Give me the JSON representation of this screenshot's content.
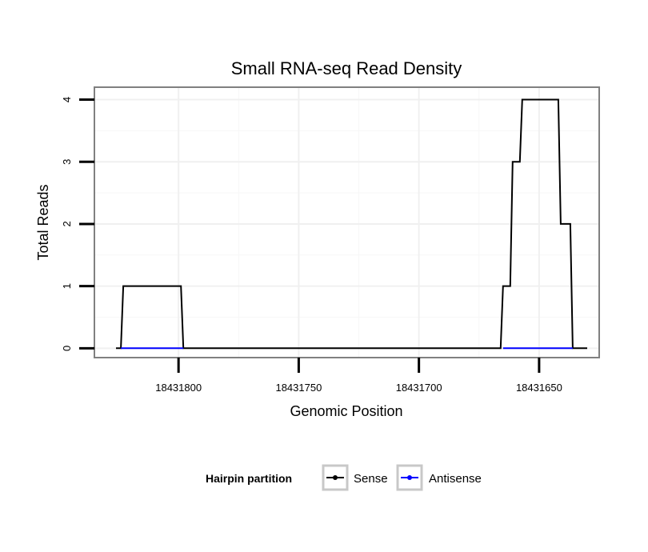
{
  "chart_data": {
    "type": "line",
    "title": "Small RNA-seq Read Density",
    "xlabel": "Genomic Position",
    "ylabel": "Total Reads",
    "xlim": [
      18431835,
      18431625
    ],
    "ylim": [
      -0.15,
      4.2
    ],
    "x_reversed": true,
    "grid": true,
    "x_ticks": [
      18431800,
      18431750,
      18431700,
      18431650
    ],
    "x_tick_labels": [
      "18431800",
      "18431750",
      "18431700",
      "18431650"
    ],
    "y_ticks": [
      0,
      1,
      2,
      3,
      4
    ],
    "y_tick_labels": [
      "0",
      "1",
      "2",
      "3",
      "4"
    ],
    "legend_title": "Hairpin partition",
    "legend_position": "bottom",
    "series": [
      {
        "name": "Sense",
        "color": "#000000",
        "points": [
          [
            18431826,
            0
          ],
          [
            18431824,
            0
          ],
          [
            18431823,
            1
          ],
          [
            18431799,
            1
          ],
          [
            18431798,
            0
          ],
          [
            18431666,
            0
          ],
          [
            18431665,
            1
          ],
          [
            18431662,
            1
          ],
          [
            18431661,
            3
          ],
          [
            18431658,
            3
          ],
          [
            18431657,
            4
          ],
          [
            18431642,
            4
          ],
          [
            18431641,
            2
          ],
          [
            18431637,
            2
          ],
          [
            18431636,
            0
          ],
          [
            18431630,
            0
          ]
        ]
      },
      {
        "name": "Antisense",
        "color": "#0000ff",
        "points": [
          [
            18431824,
            0
          ],
          [
            18431798,
            0
          ],
          [
            18431665,
            0
          ],
          [
            18431636,
            0
          ]
        ]
      }
    ]
  }
}
